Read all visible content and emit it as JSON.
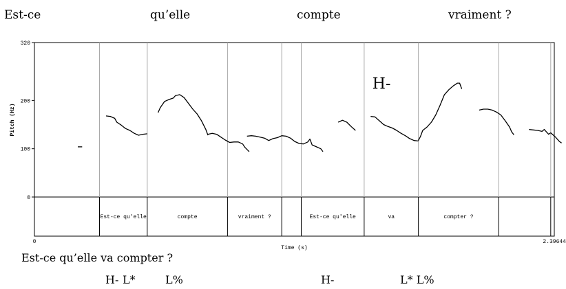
{
  "top_words": [
    "Est-ce",
    "qu’elle",
    "compte",
    "vraiment ?"
  ],
  "bottom_sentence": "Est-ce qu’elle va compter ?",
  "tone_labels": [
    "H-",
    "L*",
    "L%",
    "H-",
    "L* L%"
  ],
  "chart_data": {
    "type": "line",
    "title": "",
    "xlabel": "Time (s)",
    "ylabel": "Pitch (Hz)",
    "xlim": [
      0,
      2.39644
    ],
    "ylim": [
      0,
      320
    ],
    "x_tick_labels": [
      "0",
      "2.39644"
    ],
    "y_tick_labels": [
      "0",
      "100",
      "200",
      "320"
    ],
    "segment_boundaries": [
      0.3,
      0.52,
      0.89,
      1.14,
      1.23,
      1.52,
      1.77,
      2.14,
      2.38
    ],
    "segments": [
      {
        "label": "Est-ce qu'elle",
        "start": 0.3,
        "end": 0.52
      },
      {
        "label": "compte",
        "start": 0.52,
        "end": 0.89
      },
      {
        "label": "vraiment ?",
        "start": 0.89,
        "end": 1.14
      },
      {
        "label": "Est-ce qu'elle",
        "start": 1.23,
        "end": 1.52
      },
      {
        "label": "va",
        "start": 1.52,
        "end": 1.77
      },
      {
        "label": "compter ?",
        "start": 1.77,
        "end": 2.14
      }
    ],
    "annotations": [
      {
        "text": "H-",
        "x": 1.6,
        "y": 225
      }
    ],
    "series": [
      {
        "values": [
          [
            0.2,
            104
          ],
          [
            0.22,
            104
          ]
        ]
      },
      {
        "values": [
          [
            0.33,
            168
          ],
          [
            0.35,
            167
          ],
          [
            0.37,
            163
          ],
          [
            0.38,
            155
          ],
          [
            0.4,
            149
          ],
          [
            0.42,
            142
          ],
          [
            0.44,
            138
          ],
          [
            0.46,
            132
          ],
          [
            0.48,
            128
          ],
          [
            0.5,
            130
          ],
          [
            0.52,
            131
          ]
        ]
      },
      {
        "values": [
          [
            0.57,
            175
          ],
          [
            0.58,
            185
          ],
          [
            0.6,
            198
          ],
          [
            0.62,
            202
          ],
          [
            0.64,
            205
          ],
          [
            0.65,
            210
          ],
          [
            0.67,
            212
          ],
          [
            0.69,
            206
          ],
          [
            0.71,
            194
          ],
          [
            0.73,
            182
          ],
          [
            0.75,
            172
          ],
          [
            0.77,
            158
          ],
          [
            0.79,
            140
          ],
          [
            0.8,
            128
          ]
        ]
      },
      {
        "values": [
          [
            0.8,
            130
          ],
          [
            0.82,
            132
          ],
          [
            0.84,
            130
          ],
          [
            0.86,
            124
          ],
          [
            0.88,
            118
          ],
          [
            0.9,
            113
          ],
          [
            0.92,
            114
          ],
          [
            0.94,
            114
          ],
          [
            0.96,
            110
          ],
          [
            0.97,
            103
          ],
          [
            0.99,
            94
          ]
        ]
      },
      {
        "values": [
          [
            0.98,
            126
          ],
          [
            1.0,
            127
          ],
          [
            1.02,
            126
          ],
          [
            1.04,
            124
          ],
          [
            1.06,
            122
          ],
          [
            1.08,
            117
          ],
          [
            1.1,
            121
          ],
          [
            1.12,
            123
          ],
          [
            1.14,
            127
          ],
          [
            1.16,
            126
          ],
          [
            1.18,
            122
          ],
          [
            1.2,
            115
          ],
          [
            1.22,
            111
          ],
          [
            1.24,
            110
          ],
          [
            1.26,
            114
          ],
          [
            1.27,
            120
          ],
          [
            1.28,
            108
          ],
          [
            1.3,
            104
          ],
          [
            1.32,
            100
          ],
          [
            1.33,
            94
          ]
        ]
      },
      {
        "values": [
          [
            1.4,
            155
          ],
          [
            1.42,
            159
          ],
          [
            1.44,
            155
          ],
          [
            1.46,
            146
          ],
          [
            1.48,
            138
          ]
        ]
      },
      {
        "values": [
          [
            1.55,
            167
          ],
          [
            1.57,
            166
          ],
          [
            1.59,
            158
          ],
          [
            1.61,
            150
          ],
          [
            1.63,
            146
          ],
          [
            1.65,
            143
          ],
          [
            1.67,
            138
          ],
          [
            1.69,
            132
          ],
          [
            1.71,
            127
          ],
          [
            1.73,
            121
          ],
          [
            1.75,
            117
          ],
          [
            1.77,
            116
          ]
        ]
      },
      {
        "values": [
          [
            1.77,
            117
          ],
          [
            1.78,
            126
          ],
          [
            1.79,
            138
          ],
          [
            1.81,
            145
          ],
          [
            1.83,
            155
          ],
          [
            1.85,
            170
          ],
          [
            1.87,
            190
          ],
          [
            1.89,
            212
          ],
          [
            1.91,
            222
          ],
          [
            1.93,
            230
          ],
          [
            1.95,
            236
          ],
          [
            1.96,
            236
          ],
          [
            1.97,
            224
          ]
        ]
      },
      {
        "values": [
          [
            2.05,
            180
          ],
          [
            2.07,
            182
          ],
          [
            2.09,
            182
          ],
          [
            2.11,
            180
          ],
          [
            2.13,
            176
          ],
          [
            2.15,
            170
          ],
          [
            2.17,
            158
          ],
          [
            2.19,
            145
          ],
          [
            2.2,
            135
          ],
          [
            2.21,
            129
          ]
        ]
      },
      {
        "values": [
          [
            2.28,
            140
          ],
          [
            2.3,
            139
          ],
          [
            2.32,
            138
          ],
          [
            2.34,
            136
          ],
          [
            2.35,
            140
          ],
          [
            2.36,
            135
          ],
          [
            2.37,
            130
          ],
          [
            2.38,
            133
          ],
          [
            2.4,
            125
          ],
          [
            2.42,
            115
          ],
          [
            2.43,
            112
          ]
        ]
      }
    ]
  }
}
